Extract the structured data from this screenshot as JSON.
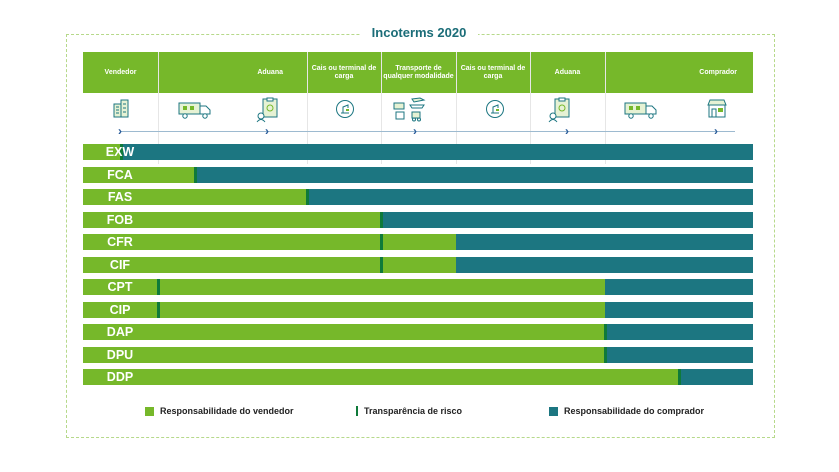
{
  "title": "Incoterms 2020",
  "colors": {
    "seller": "#76b82a",
    "buyer": "#1c7681",
    "risk": "#0f7a3a",
    "title": "#1b6d78"
  },
  "header": {
    "cells": [
      {
        "label": "Vendedor"
      },
      {
        "label": "Aduana"
      },
      {
        "label": "Cais ou terminal de carga"
      },
      {
        "label": "Transporte de qualquer modalidade"
      },
      {
        "label": "Cais ou terminal de carga"
      },
      {
        "label": "Aduana"
      },
      {
        "label": "Comprador"
      }
    ]
  },
  "icons": [
    "factory-icon",
    "truck-icon",
    "customs-document-icon",
    "port-crane-icon",
    "multimodal-transport-icon",
    "port-crane-icon",
    "customs-document-icon",
    "truck-icon",
    "store-icon"
  ],
  "rows": [
    {
      "code": "EXW",
      "seller_until": 0.5,
      "risk_at": 0.5
    },
    {
      "code": "FCA",
      "seller_until": 1.5,
      "risk_at": 1.5
    },
    {
      "code": "FAS",
      "seller_until": 3,
      "risk_at": 3
    },
    {
      "code": "FOB",
      "seller_until": 4,
      "risk_at": 4
    },
    {
      "code": "CFR",
      "seller_until": 5,
      "risk_at": 4
    },
    {
      "code": "CIF",
      "seller_until": 5,
      "risk_at": 4
    },
    {
      "code": "CPT",
      "seller_until": 7,
      "risk_at": 1
    },
    {
      "code": "CIP",
      "seller_until": 7,
      "risk_at": 1
    },
    {
      "code": "DAP",
      "seller_until": 7,
      "risk_at": 7
    },
    {
      "code": "DPU",
      "seller_until": 7,
      "risk_at": 7
    },
    {
      "code": "DDP",
      "seller_until": 8,
      "risk_at": 8
    }
  ],
  "legend": {
    "seller": "Responsabilidade do vendedor",
    "risk": "Transparência de risco",
    "buyer": "Responsabilidade do comprador"
  }
}
